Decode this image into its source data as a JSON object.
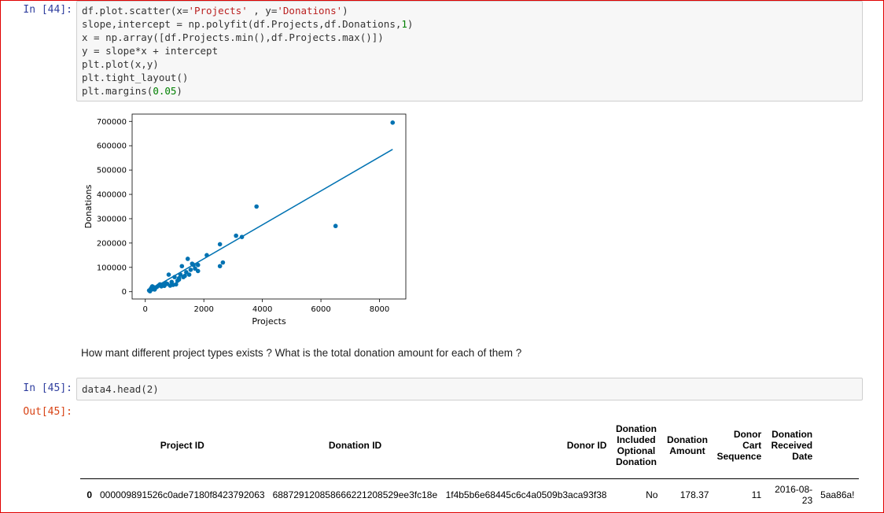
{
  "cells": {
    "cell44": {
      "prompt": "In [44]:",
      "lines": [
        [
          "df.plot.scatter(x=",
          "'Projects'",
          " , y=",
          "'Donations'",
          ")"
        ],
        [
          "slope,intercept = np.polyfit(df.Projects,df.Donations,",
          "1",
          ")"
        ],
        [
          "x = np.array([df.Projects.min(),df.Projects.max()])"
        ],
        [
          "y = slope*x + intercept"
        ],
        [
          "plt.plot(x,y)"
        ],
        [
          "plt.tight_layout()"
        ],
        [
          "plt.margins(",
          "0.05",
          ")"
        ]
      ]
    },
    "markdown": "How mant different project types exists ? What is the total donation amount for each of them ?",
    "cell45": {
      "prompt": "In [45]:",
      "code": "data4.head(2)",
      "out_prompt": "Out[45]:"
    }
  },
  "chart_data": {
    "type": "scatter",
    "xlabel": "Projects",
    "ylabel": "Donations",
    "xlim": [
      -450,
      8900
    ],
    "ylim": [
      -30000,
      730000
    ],
    "xticks": [
      "0",
      "2000",
      "4000",
      "6000",
      "8000"
    ],
    "yticks": [
      "0",
      "100000",
      "200000",
      "300000",
      "400000",
      "500000",
      "600000",
      "700000"
    ],
    "point_color": "#0072b2",
    "line_color": "#0072b2",
    "points": [
      [
        130,
        5000
      ],
      [
        170,
        8000
      ],
      [
        190,
        12000
      ],
      [
        210,
        15000
      ],
      [
        230,
        20000
      ],
      [
        250,
        10000
      ],
      [
        280,
        14000
      ],
      [
        300,
        18000
      ],
      [
        320,
        9000
      ],
      [
        350,
        16000
      ],
      [
        400,
        20000
      ],
      [
        450,
        25000
      ],
      [
        500,
        30000
      ],
      [
        550,
        22000
      ],
      [
        600,
        28000
      ],
      [
        700,
        35000
      ],
      [
        750,
        32000
      ],
      [
        800,
        70000
      ],
      [
        850,
        25000
      ],
      [
        900,
        40000
      ],
      [
        950,
        28000
      ],
      [
        1000,
        60000
      ],
      [
        1050,
        30000
      ],
      [
        1100,
        45000
      ],
      [
        1150,
        55000
      ],
      [
        1200,
        70000
      ],
      [
        1250,
        105000
      ],
      [
        1300,
        60000
      ],
      [
        1350,
        65000
      ],
      [
        1400,
        80000
      ],
      [
        1450,
        135000
      ],
      [
        1500,
        70000
      ],
      [
        1550,
        90000
      ],
      [
        1600,
        115000
      ],
      [
        1650,
        110000
      ],
      [
        1700,
        95000
      ],
      [
        1800,
        110000
      ],
      [
        1800,
        85000
      ],
      [
        2100,
        150000
      ],
      [
        2550,
        195000
      ],
      [
        2550,
        105000
      ],
      [
        2650,
        120000
      ],
      [
        3100,
        230000
      ],
      [
        3300,
        225000
      ],
      [
        3800,
        350000
      ],
      [
        6500,
        270000
      ],
      [
        8450,
        695000
      ],
      [
        160,
        2000
      ],
      [
        240,
        22000
      ],
      [
        650,
        24000
      ],
      [
        1150,
        50000
      ]
    ],
    "fit_line": [
      [
        130,
        5000
      ],
      [
        8450,
        585000
      ]
    ]
  },
  "table": {
    "headers": [
      "Project ID",
      "Donation ID",
      "Donor ID",
      "Donation\nIncluded\nOptional\nDonation",
      "Donation\nAmount",
      "Donor\nCart\nSequence",
      "Donation\nReceived\nDate",
      ""
    ],
    "rows": [
      [
        "0",
        "000009891526c0ade7180f8423792063",
        "688729120858666221208529ee3fc18e",
        "1f4b5b6e68445c6c4a0509b3aca93f38",
        "No",
        "178.37",
        "11",
        "2016-08-\n23",
        "5aa86a!"
      ]
    ]
  }
}
